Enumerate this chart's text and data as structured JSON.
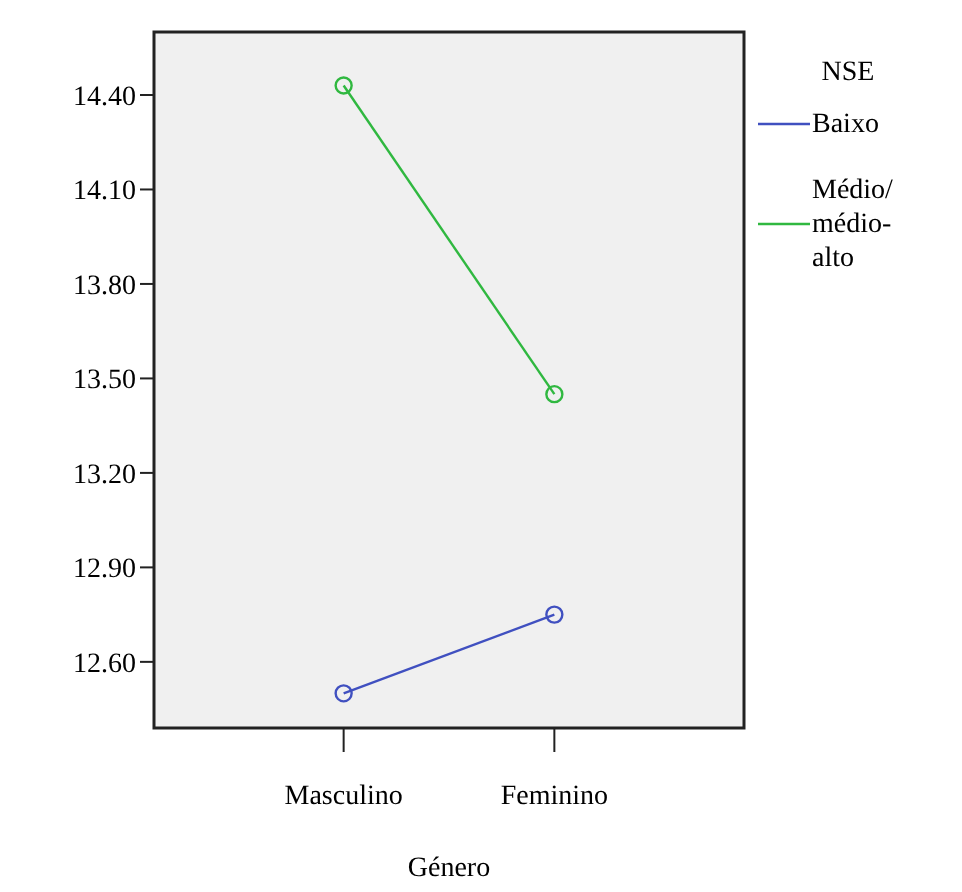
{
  "chart_data": {
    "type": "line",
    "xlabel": "Género",
    "legend_title": "NSE",
    "categories": [
      "Masculino",
      "Feminino"
    ],
    "series": [
      {
        "name": "Baixo",
        "color": "#4050c0",
        "values": [
          12.5,
          12.75
        ]
      },
      {
        "name": "Médio/médio-alto",
        "color": "#30b840",
        "values": [
          14.43,
          13.45
        ]
      }
    ],
    "ylim": [
      12.39,
      14.6
    ],
    "yticks": [
      {
        "value": 12.6,
        "label": "12.60"
      },
      {
        "value": 12.9,
        "label": "12.90"
      },
      {
        "value": 13.2,
        "label": "13.20"
      },
      {
        "value": 13.5,
        "label": "13.50"
      },
      {
        "value": 13.8,
        "label": "13.80"
      },
      {
        "value": 14.1,
        "label": "14.10"
      },
      {
        "value": 14.4,
        "label": "14.40"
      }
    ],
    "marker": "circle",
    "legend": "right",
    "grid": false
  }
}
